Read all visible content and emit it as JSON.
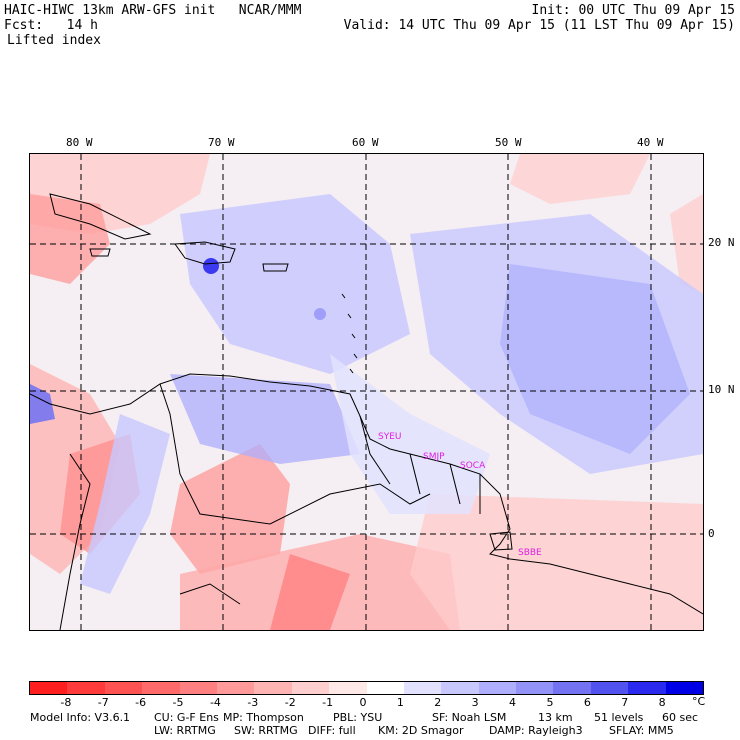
{
  "header": {
    "line1_left": "HAIC-HIWC 13km ARW-GFS init   NCAR/MMM",
    "line1_right": "Init: 00 UTC Thu 09 Apr 15",
    "line2_left": "Fcst:   14 h",
    "line2_right": "Valid: 14 UTC Thu 09 Apr 15 (11 LST Thu 09 Apr 15)",
    "line3_left": "Lifted index"
  },
  "map": {
    "lon_labels": [
      "80 W",
      "70 W",
      "60 W",
      "50 W",
      "40 W"
    ],
    "lat_labels": [
      "20 N",
      "10 N",
      "0"
    ],
    "stations": [
      "SYEU",
      "SMJP",
      "SOCA",
      "SBBE"
    ]
  },
  "colorbar": {
    "unit": "°C",
    "tick_labels": [
      "-8",
      "-7",
      "-6",
      "-5",
      "-4",
      "-3",
      "-2",
      "-1",
      "0",
      "1",
      "2",
      "3",
      "4",
      "5",
      "6",
      "7",
      "8"
    ],
    "colors": [
      "#ff1f1f",
      "#ff3b3b",
      "#ff5252",
      "#ff6a6a",
      "#ff8080",
      "#ff9a9a",
      "#ffb4b4",
      "#ffcfcf",
      "#ffe8e8",
      "#ffffff",
      "#e2e2ff",
      "#c8c8ff",
      "#aeaefc",
      "#9292f7",
      "#7474f2",
      "#5252ee",
      "#2a2aee",
      "#0000e6"
    ]
  },
  "footer": {
    "model_info": "Model Info: V3.6.1",
    "cu": "CU: G-F Ens",
    "mp": "MP: Thompson",
    "pbl": "PBL: YSU",
    "sf": "SF: Noah LSM",
    "res": "13 km",
    "levels": "51 levels",
    "dt": "60 sec",
    "lw": "LW: RRTMG",
    "sw": "SW: RRTMG",
    "diff": "DIFF: full",
    "km": "KM: 2D Smagor",
    "damp": "DAMP: Rayleigh3",
    "sflay": "SFLAY: MM5"
  }
}
